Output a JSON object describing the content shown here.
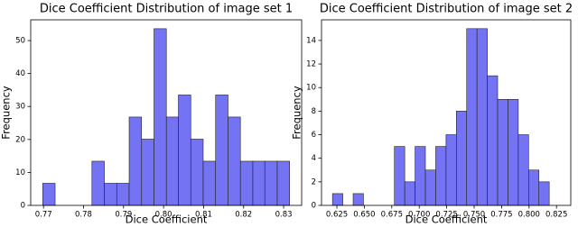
{
  "chart_data": [
    {
      "type": "histogram",
      "title": "Dice Coefficient Distribution of image set 1",
      "x_label": "Dice Coefficient",
      "y_label": "Frequency",
      "color": "#6b6bf2",
      "bins": [
        0.7698,
        0.7729,
        0.776,
        0.7791,
        0.7821,
        0.7852,
        0.7883,
        0.7914,
        0.7945,
        0.7976,
        0.8007,
        0.8037,
        0.8068,
        0.8099,
        0.813,
        0.8161,
        0.8192,
        0.8223,
        0.8253,
        0.8284,
        0.8315
      ],
      "counts": [
        6.7,
        0,
        0,
        0,
        13.4,
        6.7,
        6.7,
        26.8,
        20.1,
        53.6,
        26.8,
        33.5,
        20.1,
        13.4,
        33.5,
        26.8,
        13.4,
        13.4,
        13.4,
        13.4
      ],
      "xlim": [
        0.7668,
        0.8345
      ],
      "ylim": [
        0,
        56.3
      ],
      "xticks": [
        0.77,
        0.78,
        0.79,
        {
          "value": 0.8,
          "label": "0.80"
        },
        0.81,
        0.82,
        0.83
      ],
      "yticks": [
        0,
        10,
        20,
        30,
        40,
        50
      ]
    },
    {
      "type": "histogram",
      "title": "Dice Coefficient Distribution of image set 2",
      "x_label": "Dice Coefficient",
      "y_label": "Frequency",
      "color": "#6b6bf2",
      "bins": [
        0.621,
        0.6304,
        0.6398,
        0.6492,
        0.6586,
        0.668,
        0.6774,
        0.6868,
        0.6962,
        0.7056,
        0.715,
        0.7244,
        0.7338,
        0.7432,
        0.7526,
        0.762,
        0.7714,
        0.7808,
        0.7902,
        0.7996,
        0.809,
        0.8184,
        0.8278
      ],
      "counts": [
        1,
        0,
        1,
        0,
        0,
        0,
        5,
        2,
        5,
        3,
        5,
        6,
        8,
        15,
        15,
        11,
        9,
        9,
        6,
        3,
        2,
        0
      ],
      "xlim": [
        0.611,
        0.838
      ],
      "ylim": [
        0,
        15.75
      ],
      "xticks": [
        0.625,
        {
          "value": 0.65,
          "label": "0.650"
        },
        0.675,
        {
          "value": 0.7,
          "label": "0.700"
        },
        0.725,
        {
          "value": 0.75,
          "label": "0.750"
        },
        0.775,
        {
          "value": 0.8,
          "label": "0.800"
        },
        0.825
      ],
      "yticks": [
        0,
        2,
        4,
        6,
        8,
        10,
        12,
        14
      ]
    }
  ]
}
